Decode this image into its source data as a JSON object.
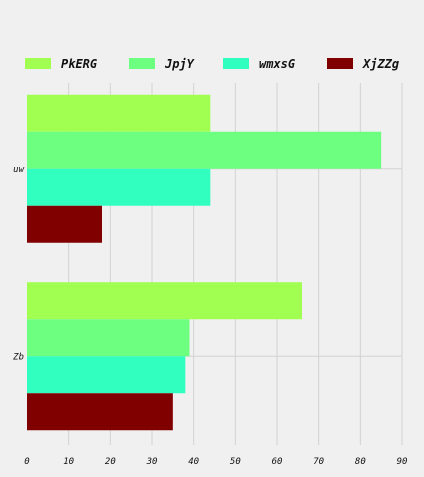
{
  "chart_data": {
    "type": "bar",
    "orientation": "horizontal",
    "categories": [
      "uw",
      "Zb"
    ],
    "series": [
      {
        "name": "PkERG",
        "color": "#a0ff50",
        "values": [
          44,
          66
        ]
      },
      {
        "name": "JpjY",
        "color": "#6cff80",
        "values": [
          85,
          39
        ]
      },
      {
        "name": "wmxsG",
        "color": "#30ffc0",
        "values": [
          44,
          38
        ]
      },
      {
        "name": "XjZZg",
        "color": "#800000",
        "values": [
          18,
          35
        ]
      }
    ],
    "x_ticks": [
      "0",
      "10",
      "20",
      "30",
      "40",
      "50",
      "60",
      "70",
      "80",
      "90"
    ],
    "xlim": [
      0,
      90
    ],
    "grid": true,
    "legend_position": "top"
  }
}
